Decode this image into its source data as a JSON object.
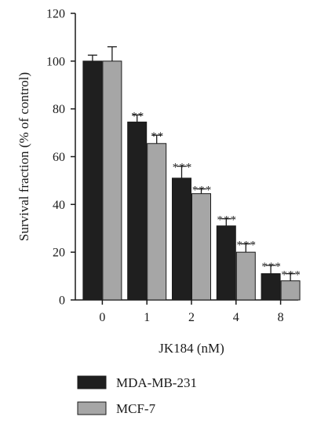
{
  "chart_data": {
    "type": "bar",
    "xlabel": "JK184 (nM)",
    "ylabel": "Survival fraction (% of control)",
    "ylim": [
      0,
      120
    ],
    "yticks": [
      0,
      20,
      40,
      60,
      80,
      100,
      120
    ],
    "categories": [
      "0",
      "1",
      "2",
      "4",
      "8"
    ],
    "series": [
      {
        "name": "MDA-MB-231",
        "color": "#1f1f1f",
        "values": [
          100,
          74.5,
          51,
          31,
          11
        ],
        "errors": [
          2.5,
          3,
          5,
          3,
          3.5
        ],
        "significance": [
          "",
          "**",
          "***",
          "***",
          "***"
        ]
      },
      {
        "name": "MCF-7",
        "color": "#a6a6a6",
        "values": [
          100,
          65.5,
          44.5,
          20,
          8
        ],
        "errors": [
          6,
          3.5,
          2,
          3.5,
          3
        ],
        "significance": [
          "",
          "**",
          "***",
          "***",
          "***"
        ]
      }
    ],
    "legend_position": "bottom-left",
    "grid": false
  }
}
